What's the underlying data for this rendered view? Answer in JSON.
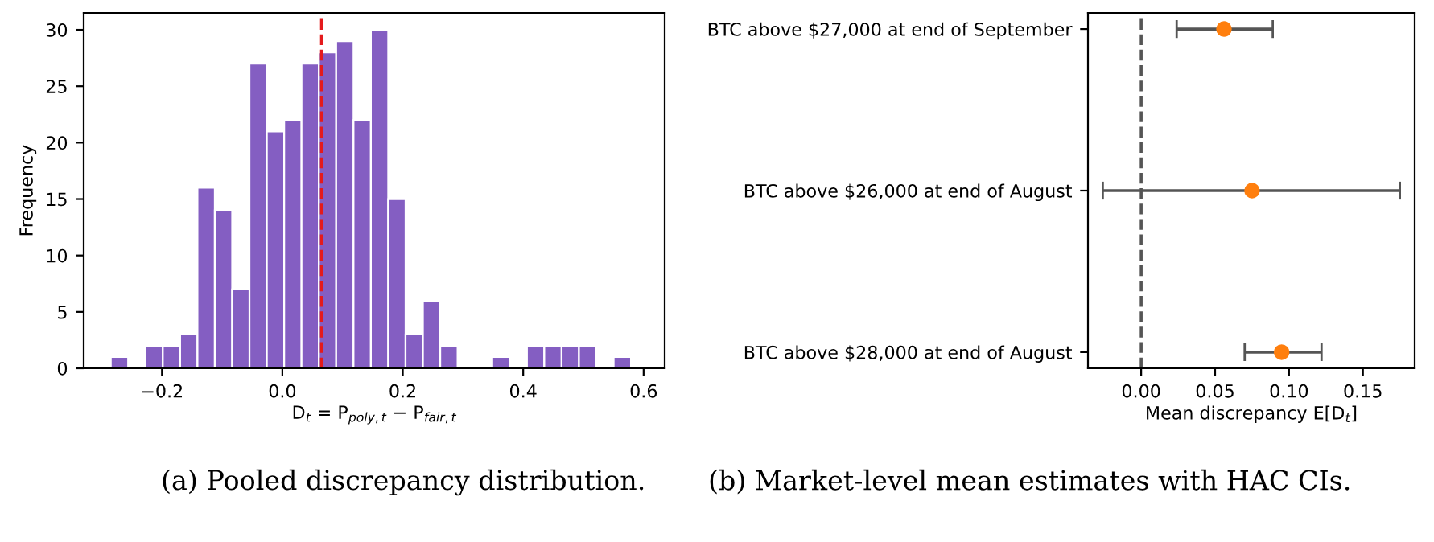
{
  "chart_data": [
    {
      "type": "histogram",
      "xlabel": "D$_{t}$ = P$_{poly,t}$ − P$_{fair,t}$",
      "ylabel": "Frequency",
      "bins": [
        -0.285,
        -0.2562,
        -0.2274,
        -0.1986,
        -0.1698,
        -0.141,
        -0.1122,
        -0.0834,
        -0.0546,
        -0.0258,
        0.003,
        0.0318,
        0.0606,
        0.0894,
        0.1182,
        0.147,
        0.1758,
        0.2046,
        0.2334,
        0.2622,
        0.291,
        0.3198,
        0.3486,
        0.3774,
        0.4062,
        0.435,
        0.4638,
        0.4926,
        0.5214,
        0.5502,
        0.579
      ],
      "values": [
        1,
        0,
        2,
        2,
        3,
        16,
        14,
        7,
        27,
        21,
        22,
        27,
        28,
        29,
        22,
        30,
        15,
        3,
        6,
        2,
        0,
        0,
        1,
        0,
        2,
        2,
        2,
        2,
        0,
        1
      ],
      "color": "#845ec2",
      "xlim": [
        -0.33,
        0.635
      ],
      "xticks": [
        {
          "value": -0.2,
          "label": "−0.2"
        },
        {
          "value": 0.0,
          "label": "0.0"
        },
        {
          "value": 0.2,
          "label": "0.2"
        },
        {
          "value": 0.4,
          "label": "0.4"
        },
        {
          "value": 0.6,
          "label": "0.6"
        }
      ],
      "ylim": [
        0,
        31.5
      ],
      "yticks": [
        0,
        5,
        10,
        15,
        20,
        25,
        30
      ],
      "ref_lines": [
        {
          "axis": "x",
          "value": 0.065,
          "color": "#e41a1c",
          "line_style": "dashed"
        }
      ],
      "annotations": [
        "(a) Pooled discrepancy distribution."
      ]
    },
    {
      "type": "scatter",
      "orientation": "horizontal",
      "xlabel": "Mean discrepancy E[D$_{t}$]",
      "categories": [
        "BTC above $27,000 at end of September",
        "BTC above $26,000 at end of August",
        "BTC above $28,000 at end of August"
      ],
      "values": [
        0.056,
        0.075,
        0.095
      ],
      "errors": [
        [
          0.024,
          0.089
        ],
        [
          -0.026,
          0.175
        ],
        [
          0.07,
          0.122
        ]
      ],
      "color": "#ff7f0e",
      "marker": "circle",
      "xlim": [
        -0.036,
        0.185
      ],
      "xticks": [
        {
          "value": 0.0,
          "label": "0.00"
        },
        {
          "value": 0.05,
          "label": "0.05"
        },
        {
          "value": 0.1,
          "label": "0.10"
        },
        {
          "value": 0.15,
          "label": "0.15"
        }
      ],
      "ref_lines": [
        {
          "axis": "x",
          "value": 0,
          "color": "#555555",
          "line_style": "dashed"
        }
      ],
      "annotations": [
        "(b) Market-level mean estimates with HAC CIs."
      ]
    }
  ]
}
